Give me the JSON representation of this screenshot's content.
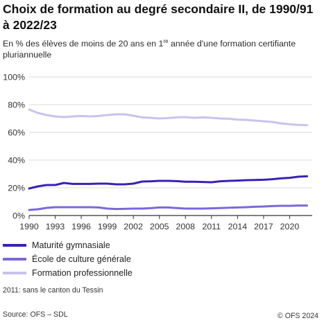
{
  "header": {
    "title": "Choix de formation au degré secondaire II, de 1990/91 à 2022/23",
    "subtitle_before": "En % des élèves de moins de 20 ans en 1",
    "subtitle_sup": "re",
    "subtitle_after": " année d'une formation certifiante pluriannuelle"
  },
  "note": "2011: sans le canton du Tessin",
  "footer": {
    "source": "Source: OFS – SDL",
    "copyright_symbol": "©",
    "copyright": "OFS 2024"
  },
  "chart_data": {
    "type": "line",
    "x": [
      1990,
      1991,
      1992,
      1993,
      1994,
      1995,
      1996,
      1997,
      1998,
      1999,
      2000,
      2001,
      2002,
      2003,
      2004,
      2005,
      2006,
      2007,
      2008,
      2009,
      2010,
      2011,
      2012,
      2013,
      2014,
      2015,
      2016,
      2017,
      2018,
      2019,
      2020,
      2021,
      2022
    ],
    "xticks": [
      1990,
      1993,
      1996,
      1999,
      2002,
      2005,
      2008,
      2011,
      2014,
      2017,
      2020
    ],
    "xlim": [
      1990,
      2022.6
    ],
    "ylim": [
      0,
      100
    ],
    "yticks": [
      0,
      20,
      40,
      60,
      80,
      100
    ],
    "ytick_labels": [
      "0%",
      "20%",
      "40%",
      "60%",
      "80%",
      "100%"
    ],
    "grid": "horizontal",
    "legend_position": "bottom",
    "series": [
      {
        "name": "Maturité gymnasiale",
        "color": "#3b1fb8",
        "values": [
          19.5,
          21.0,
          22.0,
          22.0,
          23.5,
          22.8,
          22.8,
          22.8,
          23.0,
          23.0,
          22.5,
          22.5,
          23.0,
          24.5,
          24.7,
          25.0,
          25.0,
          24.8,
          24.4,
          24.4,
          24.2,
          24.0,
          24.7,
          25.0,
          25.2,
          25.5,
          25.6,
          25.8,
          26.2,
          26.8,
          27.2,
          28.0,
          28.3
        ]
      },
      {
        "name": "École de culture générale",
        "color": "#7b68db",
        "values": [
          4.0,
          4.5,
          5.5,
          6.0,
          6.0,
          6.0,
          6.0,
          6.0,
          5.8,
          5.0,
          4.7,
          4.8,
          5.0,
          5.0,
          5.3,
          5.8,
          5.8,
          5.4,
          5.0,
          5.0,
          5.0,
          5.2,
          5.4,
          5.6,
          5.8,
          6.0,
          6.3,
          6.5,
          6.8,
          7.0,
          7.0,
          7.2,
          7.2
        ]
      },
      {
        "name": "Formation professionnelle",
        "color": "#c7c3ed",
        "values": [
          76.5,
          74.0,
          72.5,
          71.5,
          71.0,
          71.5,
          71.8,
          71.5,
          71.8,
          72.5,
          73.0,
          73.0,
          72.0,
          70.8,
          70.5,
          70.0,
          70.3,
          70.8,
          71.0,
          70.5,
          70.8,
          70.5,
          70.0,
          69.8,
          69.2,
          69.0,
          68.5,
          68.0,
          67.5,
          66.5,
          65.8,
          65.4,
          65.2
        ]
      }
    ]
  }
}
